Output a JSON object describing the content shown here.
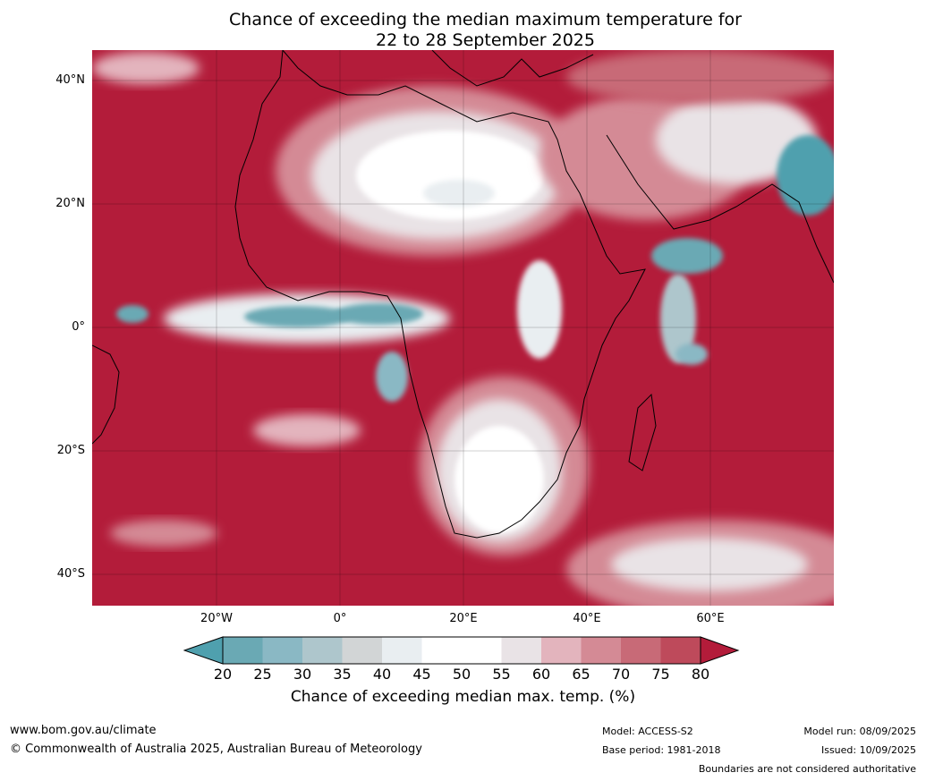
{
  "title": {
    "line1": "Chance of exceeding the median maximum temperature for",
    "line2": "22 to 28 September 2025"
  },
  "map": {
    "region": "Africa",
    "background_color": "#b31c3a",
    "y_ticks": [
      "40°N",
      "20°N",
      "0°",
      "20°S",
      "40°S"
    ],
    "x_ticks": [
      "20°W",
      "0°",
      "20°E",
      "40°E",
      "60°E"
    ]
  },
  "colorbar": {
    "label": "Chance of exceeding median max. temp. (%)",
    "ticks": [
      "20",
      "25",
      "30",
      "35",
      "40",
      "45",
      "50",
      "55",
      "60",
      "65",
      "70",
      "75",
      "80"
    ],
    "colors": [
      "#4fa0ae",
      "#6aa9b4",
      "#8ab8c4",
      "#aec6cc",
      "#d2d5d6",
      "#e9eef1",
      "#ffffff",
      "#ffffff",
      "#e9e3e6",
      "#e3b4bd",
      "#d48a95",
      "#c86a77",
      "#be4a5b",
      "#b31c3a"
    ]
  },
  "footer": {
    "website": "www.bom.gov.au/climate",
    "copyright": "© Commonwealth of Australia 2025, Australian Bureau of Meteorology",
    "model": "Model: ACCESS-S2",
    "base_period": "Base period: 1981-2018",
    "model_run": "Model run: 08/09/2025",
    "issued": "Issued: 10/09/2025",
    "disclaimer": "Boundaries are not considered authoritative"
  }
}
